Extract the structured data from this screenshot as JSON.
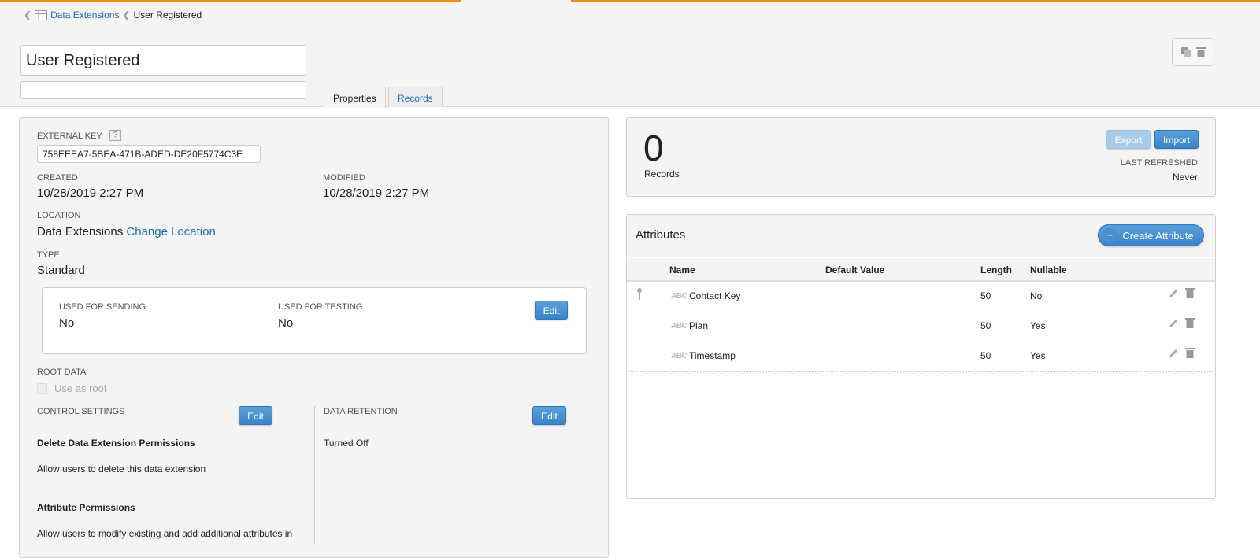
{
  "breadcrumb": {
    "parent": "Data Extensions",
    "current": "User Registered"
  },
  "header": {
    "name_value": "User Registered",
    "description_value": ""
  },
  "tabs": [
    {
      "label": "Properties",
      "active": true
    },
    {
      "label": "Records",
      "active": false
    }
  ],
  "properties": {
    "external_key_label": "EXTERNAL KEY",
    "help": "?",
    "external_key_value": "758EEEA7-5BEA-471B-ADED-DE20F5774C3E",
    "created_label": "CREATED",
    "created_value": "10/28/2019 2:27 PM",
    "modified_label": "MODIFIED",
    "modified_value": "10/28/2019 2:27 PM",
    "location_label": "LOCATION",
    "location_value": "Data Extensions",
    "change_location": "Change Location",
    "type_label": "TYPE",
    "type_value": "Standard",
    "sending_label": "USED FOR SENDING",
    "sending_value": "No",
    "testing_label": "USED FOR TESTING",
    "testing_value": "No",
    "edit": "Edit",
    "root_label": "ROOT DATA",
    "use_as_root": "Use as root",
    "control_label": "CONTROL SETTINGS",
    "delete_perm_title": "Delete Data Extension Permissions",
    "delete_perm_text": "Allow users to delete this data extension",
    "attr_perm_title": "Attribute Permissions",
    "attr_perm_text": "Allow users to modify existing and add additional attributes in",
    "retention_label": "DATA RETENTION",
    "retention_value": "Turned Off"
  },
  "records": {
    "count": "0",
    "label": "Records",
    "export": "Export",
    "import": "Import",
    "last_refreshed_label": "LAST REFRESHED",
    "last_refreshed_value": "Never"
  },
  "attributes": {
    "title": "Attributes",
    "create": "Create Attribute",
    "columns": [
      "Name",
      "Default Value",
      "Length",
      "Nullable"
    ],
    "type_icon_text": "ABC",
    "rows": [
      {
        "name": "Contact Key",
        "default": "",
        "length": "50",
        "nullable": "No",
        "primary_key": true
      },
      {
        "name": "Plan",
        "default": "",
        "length": "50",
        "nullable": "Yes",
        "primary_key": false
      },
      {
        "name": "Timestamp",
        "default": "",
        "length": "50",
        "nullable": "Yes",
        "primary_key": false
      }
    ]
  },
  "colors": {
    "accent": "#f08c1a",
    "link": "#1f6db5",
    "button": "#3a84c9"
  }
}
